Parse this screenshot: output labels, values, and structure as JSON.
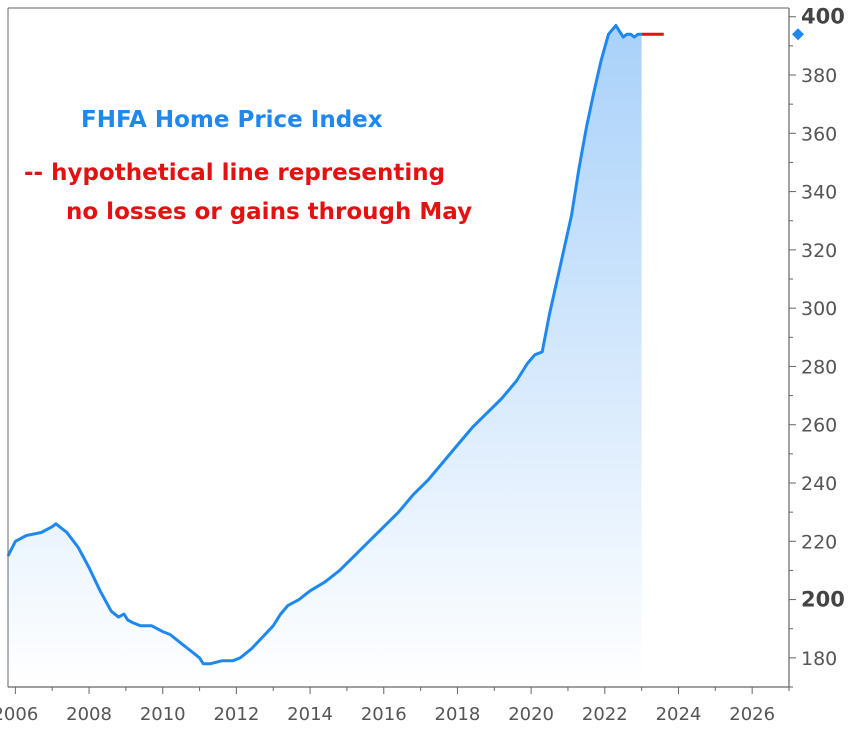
{
  "annotations": {
    "title": "FHFA Home Price Index",
    "hypothetical_line": "-- hypothetical line representing",
    "hypothetical_line_2": "no losses or gains through May"
  },
  "colors": {
    "series": "#1e88f0",
    "area_top": "#a9d1fa",
    "area_bottom": "#ffffff",
    "hypothetical": "#e31111",
    "axis": "#666666",
    "current_marker": "#1e88f0"
  },
  "chart_data": {
    "type": "area",
    "title": "",
    "xlabel": "",
    "ylabel": "",
    "xlim": [
      2005.8,
      2027.0
    ],
    "ylim": [
      170,
      403
    ],
    "y_axis_side": "right",
    "grid": false,
    "x_ticks": [
      "2006",
      "2008",
      "2010",
      "2012",
      "2014",
      "2016",
      "2018",
      "2020",
      "2022",
      "2024",
      "2026"
    ],
    "y_ticks": [
      "180",
      "200",
      "220",
      "240",
      "260",
      "280",
      "300",
      "320",
      "340",
      "360",
      "380",
      "400"
    ],
    "y_ticks_bold": [
      "200",
      "400"
    ],
    "series": [
      {
        "x": [
          2005.8,
          2006.0,
          2006.3,
          2006.7,
          2007.0,
          2007.1,
          2007.4,
          2007.7,
          2008.0,
          2008.3,
          2008.6,
          2008.8,
          2008.95,
          2009.05,
          2009.2,
          2009.4,
          2009.7,
          2010.0,
          2010.2,
          2010.5,
          2010.8,
          2011.0,
          2011.1,
          2011.3,
          2011.6,
          2011.9,
          2012.1,
          2012.4,
          2012.7,
          2013.0,
          2013.2,
          2013.4,
          2013.7,
          2014.0,
          2014.4,
          2014.8,
          2015.2,
          2015.6,
          2016.0,
          2016.4,
          2016.8,
          2017.2,
          2017.6,
          2018.0,
          2018.4,
          2018.8,
          2019.2,
          2019.6,
          2019.9,
          2020.1,
          2020.3,
          2020.5,
          2020.8,
          2021.1,
          2021.3,
          2021.5,
          2021.7,
          2021.9,
          2022.1,
          2022.3,
          2022.4,
          2022.5,
          2022.6,
          2022.7,
          2022.8,
          2022.9,
          2023.0
        ],
        "y": [
          215,
          220,
          222,
          223,
          225,
          226,
          223,
          218,
          211,
          203,
          196,
          194,
          195,
          193,
          192,
          191,
          191,
          189,
          188,
          185,
          182,
          180,
          178,
          178,
          179,
          179,
          180,
          183,
          187,
          191,
          195,
          198,
          200,
          203,
          206,
          210,
          215,
          220,
          225,
          230,
          236,
          241,
          247,
          253,
          259,
          264,
          269,
          275,
          281,
          284,
          285,
          298,
          315,
          332,
          348,
          362,
          374,
          385,
          394,
          397,
          395,
          393,
          394,
          394,
          393,
          394,
          394
        ]
      }
    ],
    "hypothetical_line": {
      "x": [
        2023.0,
        2023.6
      ],
      "y": [
        394,
        394
      ]
    },
    "current_marker": {
      "y": 394
    }
  }
}
